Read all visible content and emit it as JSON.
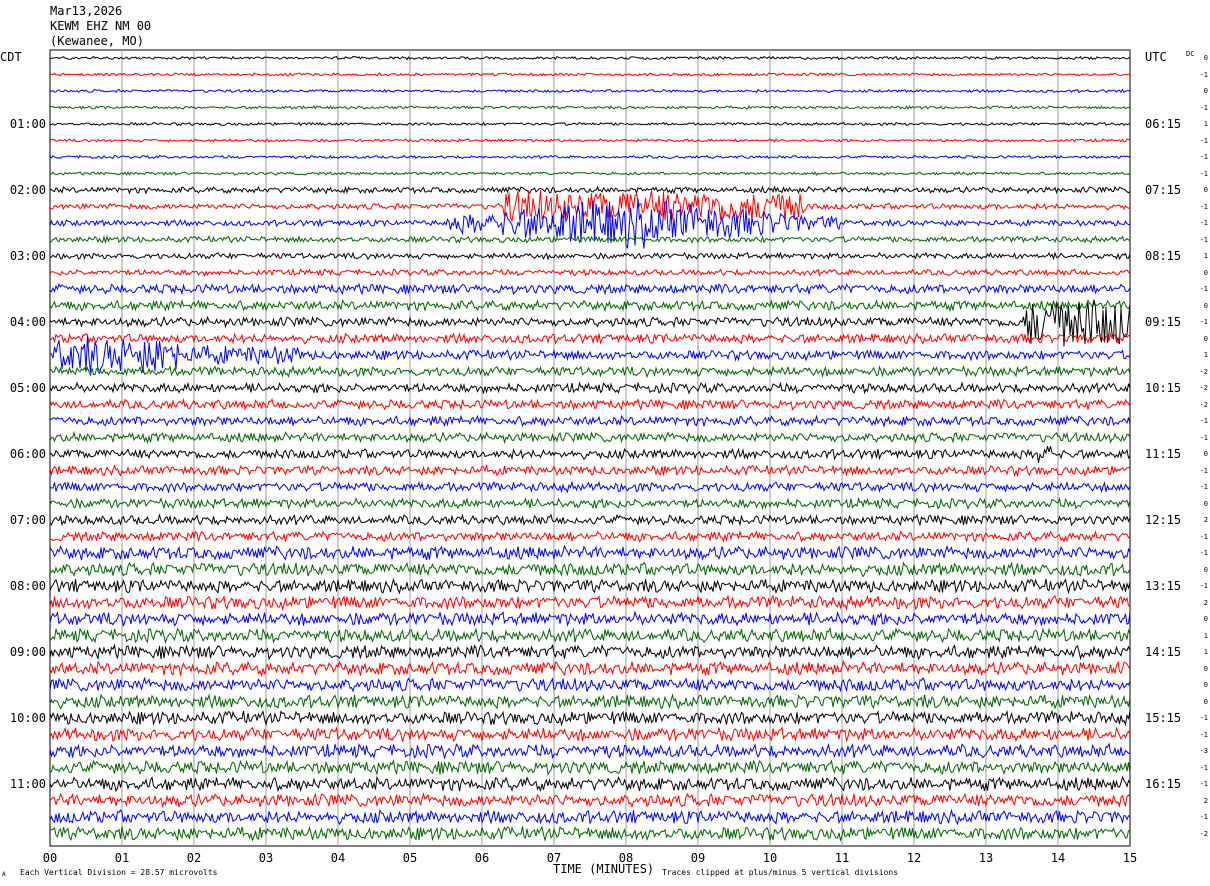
{
  "header": {
    "date": "Mar13,2026",
    "station": "KEWM EHZ NM 00",
    "location": "(Kewanee, MO)"
  },
  "left_tz": "CDT",
  "right_tz": "UTC",
  "dc_label": "DC",
  "footer": {
    "scale": "Each Vertical Division =   28.57 microvolts",
    "clip": "Traces clipped at plus/minus 5 vertical divisions",
    "corner": "A"
  },
  "colors": {
    "trace": [
      "#000000",
      "#ff0000",
      "#0000ff",
      "#006400"
    ],
    "grid": "#999999"
  },
  "chart_data": {
    "type": "line",
    "title": "",
    "xlabel": "TIME (MINUTES)",
    "ylabel": "",
    "xlim": [
      0,
      15
    ],
    "x_ticks": [
      "00",
      "01",
      "02",
      "03",
      "04",
      "05",
      "06",
      "07",
      "08",
      "09",
      "10",
      "11",
      "12",
      "13",
      "14",
      "15"
    ],
    "trace_count": 48,
    "left_ticks": [
      "01:00",
      "02:00",
      "03:00",
      "04:00",
      "05:00",
      "06:00",
      "07:00",
      "08:00",
      "09:00",
      "10:00",
      "11:00"
    ],
    "right_ticks": [
      "06:15",
      "07:15",
      "08:15",
      "09:15",
      "10:15",
      "11:15",
      "12:15",
      "13:15",
      "14:15",
      "15:15",
      "16:15"
    ],
    "dc_offsets": [
      0,
      -1,
      0,
      -1,
      1,
      -1,
      -1,
      -1,
      0,
      -1,
      -1,
      -1,
      1,
      0,
      -1,
      0,
      -1,
      0,
      1,
      -2,
      -2,
      -2,
      -1,
      -1,
      0,
      -1,
      -1,
      0,
      2,
      -1,
      -1,
      0,
      -1,
      2,
      0,
      1,
      1,
      0,
      0,
      0,
      -1,
      -1,
      -3,
      -1,
      -1,
      2,
      -1,
      -2
    ],
    "series": [
      {
        "color": "black"
      },
      {
        "color": "red"
      },
      {
        "color": "blue"
      },
      {
        "color": "green"
      }
    ]
  }
}
